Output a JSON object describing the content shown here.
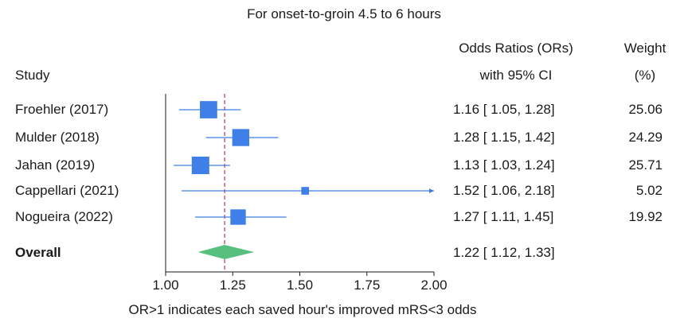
{
  "chart_data": {
    "type": "forest",
    "title": "For onset-to-groin 4.5 to 6 hours",
    "columns": {
      "study": "Study",
      "or_line1": "Odds Ratios (ORs)",
      "or_line2": "with 95% CI",
      "weight_line1": "Weight",
      "weight_line2": "(%)"
    },
    "studies": [
      {
        "name": "Froehler (2017)",
        "or": 1.16,
        "lo": 1.05,
        "hi": 1.28,
        "ci_text": "1.16 [ 1.05,  1.28]",
        "weight": 25.06,
        "weight_text": "25.06"
      },
      {
        "name": "Mulder (2018)",
        "or": 1.28,
        "lo": 1.15,
        "hi": 1.42,
        "ci_text": "1.28 [ 1.15,  1.42]",
        "weight": 24.29,
        "weight_text": "24.29"
      },
      {
        "name": "Jahan (2019)",
        "or": 1.13,
        "lo": 1.03,
        "hi": 1.24,
        "ci_text": "1.13 [ 1.03,  1.24]",
        "weight": 25.71,
        "weight_text": "25.71"
      },
      {
        "name": "Cappellari (2021)",
        "or": 1.52,
        "lo": 1.06,
        "hi": 2.18,
        "ci_text": "1.52 [ 1.06,  2.18]",
        "weight": 5.02,
        "weight_text": "5.02"
      },
      {
        "name": "Nogueira (2022)",
        "or": 1.27,
        "lo": 1.11,
        "hi": 1.45,
        "ci_text": "1.27 [ 1.11,  1.45]",
        "weight": 19.92,
        "weight_text": "19.92"
      }
    ],
    "overall": {
      "name": "Overall",
      "or": 1.22,
      "lo": 1.12,
      "hi": 1.33,
      "ci_text": "1.22 [ 1.12,  1.33]"
    },
    "x_axis": {
      "ticks": [
        1.0,
        1.25,
        1.5,
        1.75,
        2.0
      ],
      "tick_labels": [
        "1.00",
        "1.25",
        "1.50",
        "1.75",
        "2.00"
      ],
      "range": [
        1.0,
        2.0
      ],
      "xlabel": "OR>1 indicates each saved hour's improved mRS<3 odds"
    },
    "reference_line": 1.0,
    "overall_line": 1.22,
    "colors": {
      "marker": "#3f7fe8",
      "diamond": "#57c07e",
      "overall_line": "#d26a7d",
      "axis": "#1a1a1a"
    }
  }
}
